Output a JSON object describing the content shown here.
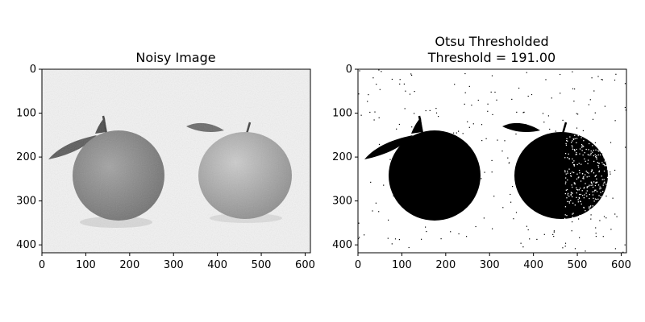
{
  "chart_data": [
    {
      "type": "heatmap",
      "title": "Noisy Image",
      "colormap": "gray",
      "image_extent": {
        "x": [
          0,
          612
        ],
        "y": [
          0,
          418
        ]
      },
      "x_ticks": [
        0,
        100,
        200,
        300,
        400,
        500,
        600
      ],
      "y_ticks": [
        0,
        100,
        200,
        300,
        400
      ],
      "y_inverted": true,
      "content": {
        "description_tokens": [
          "two oranges with leaves",
          "grayscale",
          "speckle noise"
        ],
        "fruits": [
          {
            "cx": 170,
            "cy": 255,
            "rx": 103,
            "ry": 93,
            "gray": "#8f8f8f"
          },
          {
            "cx": 465,
            "cy": 245,
            "rx": 106,
            "ry": 97,
            "gray": "#b4b4b4"
          }
        ]
      }
    },
    {
      "type": "heatmap",
      "title": "Otsu Thresholded\nThreshold = 191.00",
      "title_lines": [
        "Otsu Thresholded",
        "Threshold = 191.00"
      ],
      "colormap": "gray",
      "threshold": 191.0,
      "image_extent": {
        "x": [
          0,
          612
        ],
        "y": [
          0,
          418
        ]
      },
      "x_ticks": [
        0,
        100,
        200,
        300,
        400,
        500,
        600
      ],
      "y_ticks": [
        0,
        100,
        200,
        300,
        400
      ],
      "y_inverted": true,
      "content": {
        "fruits": [
          {
            "cx": 170,
            "cy": 255,
            "rx": 103,
            "ry": 93,
            "gray": "#000000"
          },
          {
            "cx": 465,
            "cy": 245,
            "rx": 106,
            "ry": 97,
            "gray": "#000000"
          }
        ]
      }
    }
  ]
}
